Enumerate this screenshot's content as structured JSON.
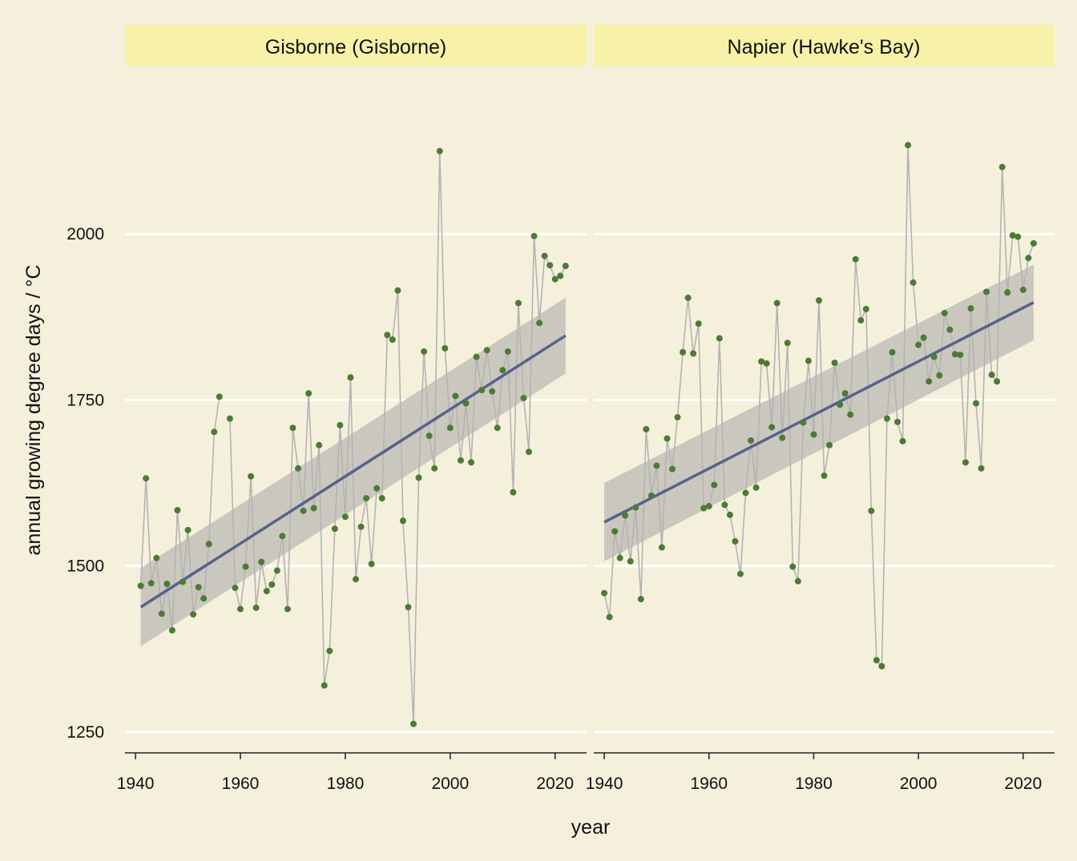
{
  "colors": {
    "background": "#f5f0dc",
    "strip": "#f8f2a9",
    "gridline": "#ffffff",
    "points": "#4d7a36",
    "connector_line": "#b3b3b3",
    "trend_line": "#56628c",
    "confidence_band": "#c2c1b8"
  },
  "chart_data": {
    "type": "line",
    "xlabel": "year",
    "ylabel": "annual growing degree days / °C",
    "xlim": [
      1938,
      2026
    ],
    "ylim": [
      1222,
      2238
    ],
    "x_ticks": [
      1940,
      1960,
      1980,
      2000,
      2020
    ],
    "y_ticks": [
      1250,
      1500,
      1750,
      2000
    ],
    "grid": "horizontal major gridlines",
    "legend": "none",
    "facets": [
      {
        "title": "Gisborne (Gisborne)",
        "x": [
          1941,
          1942,
          1943,
          1944,
          1945,
          1946,
          1947,
          1948,
          1949,
          1950,
          1951,
          1952,
          1953,
          1954,
          1955,
          1956,
          1957,
          1958,
          1959,
          1960,
          1961,
          1962,
          1963,
          1964,
          1965,
          1966,
          1967,
          1968,
          1969,
          1970,
          1971,
          1972,
          1973,
          1974,
          1975,
          1976,
          1977,
          1978,
          1979,
          1980,
          1981,
          1982,
          1983,
          1984,
          1985,
          1986,
          1987,
          1988,
          1989,
          1990,
          1991,
          1992,
          1993,
          1994,
          1995,
          1996,
          1997,
          1998,
          1999,
          2000,
          2001,
          2002,
          2003,
          2004,
          2005,
          2006,
          2007,
          2008,
          2009,
          2010,
          2011,
          2012,
          2013,
          2014,
          2015,
          2016,
          2017,
          2018,
          2019,
          2020,
          2021,
          2022
        ],
        "y": [
          1470,
          1632,
          1474,
          1512,
          1428,
          1473,
          1403,
          1584,
          1476,
          1554,
          1427,
          1468,
          1451,
          1533,
          1702,
          1755,
          null,
          1722,
          1467,
          1435,
          1499,
          1635,
          1437,
          1506,
          1462,
          1472,
          1493,
          1545,
          1435,
          1708,
          1647,
          1583,
          1760,
          1587,
          1682,
          1320,
          1372,
          1556,
          1712,
          1574,
          1784,
          1480,
          1559,
          1602,
          1503,
          1617,
          1602,
          1848,
          1841,
          1915,
          1568,
          1438,
          1262,
          1633,
          1823,
          1696,
          1647,
          2125,
          1828,
          1708,
          1756,
          1659,
          1745,
          1656,
          1815,
          1765,
          1825,
          1763,
          1708,
          1795,
          1823,
          1611,
          1896,
          1753,
          1672,
          1997,
          1866,
          1967,
          1953,
          1932,
          1937,
          1952
        ],
        "trend": {
          "x": [
            1941,
            2022
          ],
          "y": [
            1438,
            1847
          ],
          "ci_low": [
            1379,
            1790
          ],
          "ci_high": [
            1497,
            1904
          ]
        }
      },
      {
        "title": "Napier (Hawke's Bay)",
        "x": [
          1940,
          1941,
          1942,
          1943,
          1944,
          1945,
          1946,
          1947,
          1948,
          1949,
          1950,
          1951,
          1952,
          1953,
          1954,
          1955,
          1956,
          1957,
          1958,
          1959,
          1960,
          1961,
          1962,
          1963,
          1964,
          1965,
          1966,
          1967,
          1968,
          1969,
          1970,
          1971,
          1972,
          1973,
          1974,
          1975,
          1976,
          1977,
          1978,
          1979,
          1980,
          1981,
          1982,
          1983,
          1984,
          1985,
          1986,
          1987,
          1988,
          1989,
          1990,
          1991,
          1992,
          1993,
          1994,
          1995,
          1996,
          1997,
          1998,
          1999,
          2000,
          2001,
          2002,
          2003,
          2004,
          2005,
          2006,
          2007,
          2008,
          2009,
          2010,
          2011,
          2012,
          2013,
          2014,
          2015,
          2016,
          2017,
          2018,
          2019,
          2020,
          2021,
          2022
        ],
        "y": [
          1459,
          1423,
          1552,
          1512,
          1576,
          1507,
          1588,
          1450,
          1706,
          1606,
          1651,
          1528,
          1692,
          1646,
          1724,
          1822,
          1904,
          1820,
          1865,
          1587,
          1590,
          1622,
          1843,
          1592,
          1577,
          1537,
          1488,
          1610,
          1689,
          1618,
          1808,
          1805,
          1709,
          1896,
          1693,
          1836,
          1499,
          1477,
          1716,
          1809,
          1698,
          1900,
          1636,
          1682,
          1806,
          1743,
          1760,
          1728,
          1962,
          1870,
          1887,
          1583,
          1358,
          1349,
          1722,
          1822,
          1717,
          1688,
          2134,
          1927,
          1833,
          1844,
          1778,
          1815,
          1787,
          1881,
          1856,
          1819,
          1818,
          1656,
          1888,
          1745,
          1647,
          1913,
          1788,
          1778,
          2101,
          1912,
          1998,
          1996,
          1916,
          1964,
          1986
        ],
        "trend": {
          "x": [
            1940,
            2022
          ],
          "y": [
            1566,
            1897
          ],
          "ci_low": [
            1507,
            1840
          ],
          "ci_high": [
            1625,
            1954
          ]
        }
      }
    ]
  }
}
